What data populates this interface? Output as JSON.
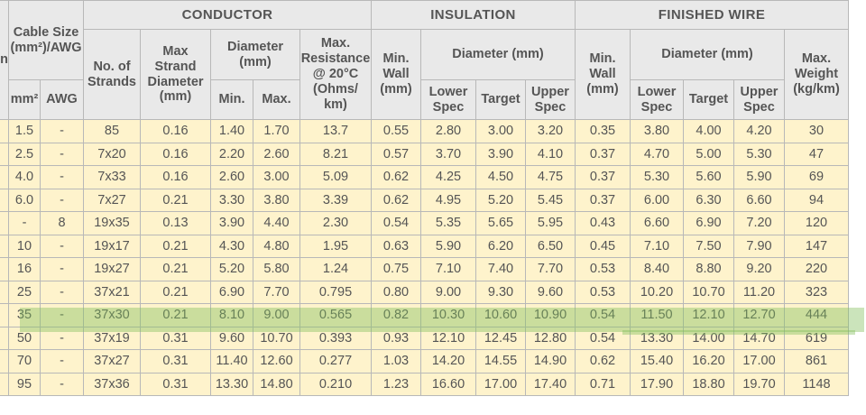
{
  "header": {
    "col0_partial": "n",
    "cable_size": "Cable Size (mm²)/AWG",
    "mm2": "mm²",
    "awg": "AWG",
    "conductor": "CONDUCTOR",
    "insulation": "INSULATION",
    "finished_wire": "FINISHED WIRE",
    "no_of_strands": "No. of Strands",
    "max_strand_diameter": "Max Strand Diameter (mm)",
    "diameter_mm_short": "Diameter (mm)",
    "min": "Min.",
    "max": "Max.",
    "max_resistance": "Max. Resistance @ 20°C (Ohms/ km)",
    "min_wall": "Min. Wall (mm)",
    "diameter_mm": "Diameter (mm)",
    "lower_spec": "Lower Spec",
    "target": "Target",
    "upper_spec": "Upper Spec",
    "max_weight": "Max. Weight (kg/km)"
  },
  "rows": [
    [
      "1.5",
      "-",
      "85",
      "0.16",
      "1.40",
      "1.70",
      "13.7",
      "0.55",
      "2.80",
      "3.00",
      "3.20",
      "0.35",
      "3.80",
      "4.00",
      "4.20",
      "30"
    ],
    [
      "2.5",
      "-",
      "7x20",
      "0.16",
      "2.20",
      "2.60",
      "8.21",
      "0.57",
      "3.70",
      "3.90",
      "4.10",
      "0.37",
      "4.70",
      "5.00",
      "5.30",
      "47"
    ],
    [
      "4.0",
      "-",
      "7x33",
      "0.16",
      "2.60",
      "3.00",
      "5.09",
      "0.62",
      "4.25",
      "4.50",
      "4.75",
      "0.37",
      "5.30",
      "5.60",
      "5.90",
      "69"
    ],
    [
      "6.0",
      "-",
      "7x27",
      "0.21",
      "3.30",
      "3.80",
      "3.39",
      "0.62",
      "4.95",
      "5.20",
      "5.45",
      "0.37",
      "6.00",
      "6.30",
      "6.60",
      "94"
    ],
    [
      "-",
      "8",
      "19x35",
      "0.13",
      "3.90",
      "4.40",
      "2.30",
      "0.54",
      "5.35",
      "5.65",
      "5.95",
      "0.43",
      "6.60",
      "6.90",
      "7.20",
      "120"
    ],
    [
      "10",
      "-",
      "19x17",
      "0.21",
      "4.30",
      "4.80",
      "1.95",
      "0.63",
      "5.90",
      "6.20",
      "6.50",
      "0.45",
      "7.10",
      "7.50",
      "7.90",
      "147"
    ],
    [
      "16",
      "-",
      "19x27",
      "0.21",
      "5.20",
      "5.80",
      "1.24",
      "0.75",
      "7.10",
      "7.40",
      "7.70",
      "0.53",
      "8.40",
      "8.80",
      "9.20",
      "220"
    ],
    [
      "25",
      "-",
      "37x21",
      "0.21",
      "6.90",
      "7.70",
      "0.795",
      "0.80",
      "9.00",
      "9.30",
      "9.60",
      "0.53",
      "10.20",
      "10.70",
      "11.20",
      "323"
    ],
    [
      "35",
      "-",
      "37x30",
      "0.21",
      "8.10",
      "9.00",
      "0.565",
      "0.82",
      "10.30",
      "10.60",
      "10.90",
      "0.54",
      "11.50",
      "12.10",
      "12.70",
      "444"
    ],
    [
      "50",
      "-",
      "37x19",
      "0.31",
      "9.60",
      "10.70",
      "0.393",
      "0.93",
      "12.10",
      "12.45",
      "12.80",
      "0.54",
      "13.30",
      "14.00",
      "14.70",
      "619"
    ],
    [
      "70",
      "-",
      "37x27",
      "0.31",
      "11.40",
      "12.60",
      "0.277",
      "1.03",
      "14.20",
      "14.55",
      "14.90",
      "0.62",
      "15.40",
      "16.20",
      "17.00",
      "861"
    ],
    [
      "95",
      "-",
      "37x36",
      "0.31",
      "13.30",
      "14.80",
      "0.210",
      "1.23",
      "16.60",
      "17.00",
      "17.40",
      "0.71",
      "17.90",
      "18.80",
      "19.70",
      "1148"
    ]
  ],
  "highlighted_row_index": 8,
  "colors": {
    "header_bg": "#e9e9e9",
    "cell_bg": "#fef3cc",
    "border": "#b8b8b8",
    "text": "#555555",
    "highlight": "#84be5e"
  }
}
